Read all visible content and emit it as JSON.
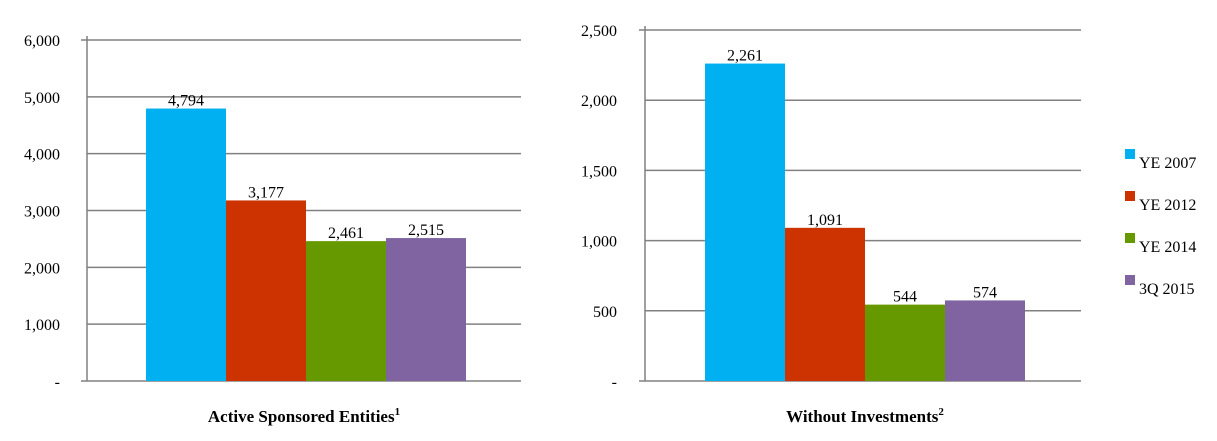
{
  "colors": {
    "YE 2007": "#00b0f0",
    "YE 2012": "#cc3300",
    "YE 2014": "#669900",
    "3Q 2015": "#8064a2",
    "grid": "#808080"
  },
  "legend": {
    "placement": "right",
    "items": [
      "YE 2007",
      "YE 2012",
      "YE 2014",
      "3Q 2015"
    ]
  },
  "chart_data": [
    {
      "type": "bar",
      "categories": [
        "YE 2007",
        "YE 2012",
        "YE 2014",
        "3Q 2015"
      ],
      "values": [
        4794,
        3177,
        2461,
        2515
      ],
      "data_labels": [
        "4,794",
        "3,177",
        "2,461",
        "2,515"
      ],
      "title": "",
      "xlabel": "Active Sponsored Entities",
      "xlabel_sup": "1",
      "ylabel": "",
      "ylim": [
        0,
        6000
      ],
      "yticks": [
        0,
        1000,
        2000,
        3000,
        4000,
        5000,
        6000
      ],
      "ytick_labels": [
        "-",
        "1,000",
        "2,000",
        "3,000",
        "4,000",
        "5,000",
        "6,000"
      ],
      "grid": true
    },
    {
      "type": "bar",
      "categories": [
        "YE 2007",
        "YE 2012",
        "YE 2014",
        "3Q 2015"
      ],
      "values": [
        2261,
        1091,
        544,
        574
      ],
      "data_labels": [
        "2,261",
        "1,091",
        "544",
        "574"
      ],
      "title": "",
      "xlabel": "Without Investments",
      "xlabel_sup": "2",
      "ylabel": "",
      "ylim": [
        0,
        2500
      ],
      "yticks": [
        0,
        500,
        1000,
        1500,
        2000,
        2500
      ],
      "ytick_labels": [
        "-",
        "500",
        "1,000",
        "1,500",
        "2,000",
        "2,500"
      ],
      "grid": true
    }
  ]
}
